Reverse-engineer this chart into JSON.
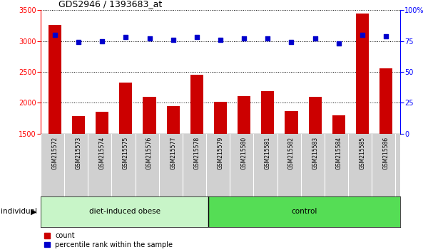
{
  "title": "GDS2946 / 1393683_at",
  "samples": [
    "GSM215572",
    "GSM215573",
    "GSM215574",
    "GSM215575",
    "GSM215576",
    "GSM215577",
    "GSM215578",
    "GSM215579",
    "GSM215580",
    "GSM215581",
    "GSM215582",
    "GSM215583",
    "GSM215584",
    "GSM215585",
    "GSM215586"
  ],
  "counts": [
    3260,
    1780,
    1850,
    2330,
    2090,
    1940,
    2450,
    2020,
    2110,
    2190,
    1860,
    2090,
    1790,
    3440,
    2560
  ],
  "percentile_ranks": [
    80,
    74,
    75,
    78,
    77,
    76,
    78,
    76,
    77,
    77,
    74,
    77,
    73,
    80,
    79
  ],
  "group1_label": "diet-induced obese",
  "group1_count": 7,
  "group2_label": "control",
  "group2_count": 8,
  "individual_label": "individual",
  "ylim_left": [
    1500,
    3500
  ],
  "ylim_right": [
    0,
    100
  ],
  "yticks_left": [
    1500,
    2000,
    2500,
    3000,
    3500
  ],
  "yticks_right": [
    0,
    25,
    50,
    75,
    100
  ],
  "bar_color": "#cc0000",
  "dot_color": "#0000cc",
  "bg_color": "#ffffff",
  "group_bg_light": "#c8f5c8",
  "group_bg_dark": "#55dd55",
  "tick_label_bg": "#d0d0d0",
  "legend_count_label": "count",
  "legend_pct_label": "percentile rank within the sample",
  "right_ytick_labels": [
    "0",
    "25",
    "50",
    "75",
    "100%"
  ]
}
